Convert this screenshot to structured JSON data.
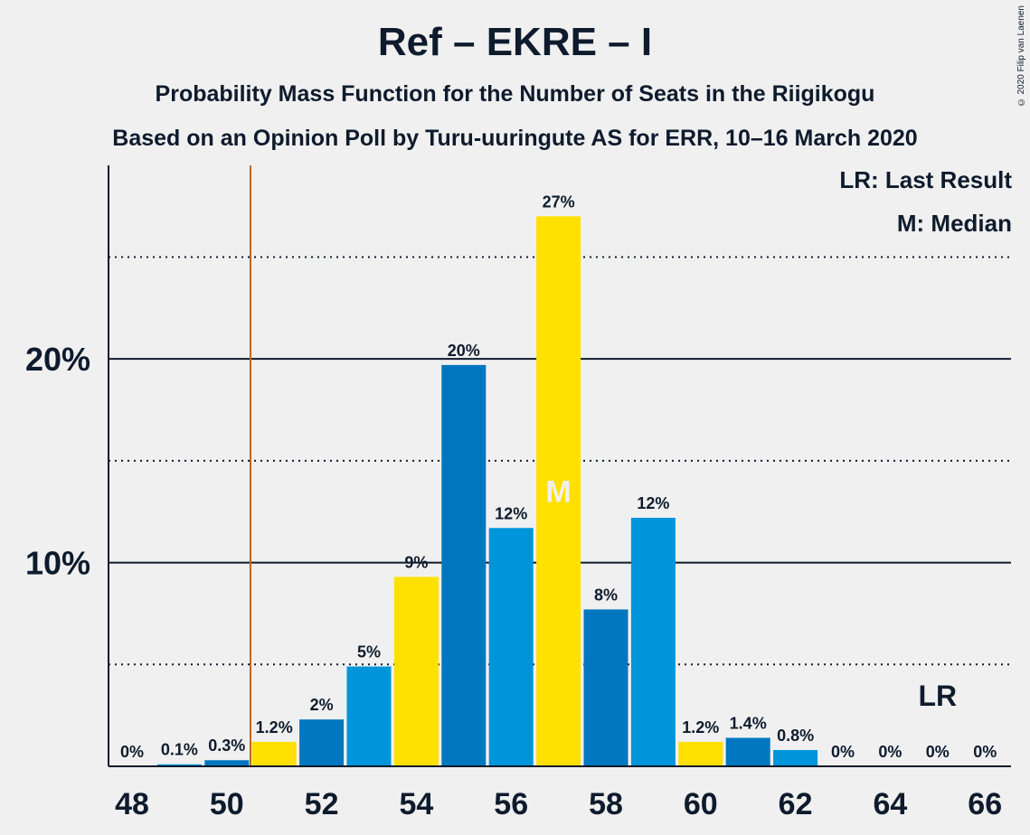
{
  "header": {
    "title": "Ref – EKRE – I",
    "subtitle": "Probability Mass Function for the Number of Seats in the Riigikogu",
    "subtitle2": "Based on an Opinion Poll by Turu-uuringute AS for ERR, 10–16 March 2020",
    "copyright": "© 2020 Filip van Laenen"
  },
  "legend": {
    "last_result": "LR: Last Result",
    "median": "M: Median"
  },
  "chart_data": {
    "type": "bar",
    "categories": [
      48,
      49,
      50,
      51,
      52,
      53,
      54,
      55,
      56,
      57,
      58,
      59,
      60,
      61,
      62,
      63,
      64,
      65,
      66
    ],
    "values": [
      0,
      0.1,
      0.3,
      1.2,
      2.3,
      4.9,
      9.3,
      19.7,
      11.7,
      27,
      7.7,
      12.2,
      1.2,
      1.4,
      0.8,
      0,
      0,
      0,
      0
    ],
    "labels": [
      "0%",
      "0.1%",
      "0.3%",
      "1.2%",
      "2%",
      "5%",
      "9%",
      "20%",
      "12%",
      "27%",
      "8%",
      "12%",
      "1.2%",
      "1.4%",
      "0.8%",
      "0%",
      "0%",
      "0%",
      "0%"
    ],
    "colors": [
      "#0077be",
      "#0095db",
      "#0077be",
      "#ffe000",
      "#0077be",
      "#0095db",
      "#ffe000",
      "#0077be",
      "#0095db",
      "#ffe000",
      "#0077be",
      "#0095db",
      "#ffe000",
      "#0077be",
      "#0095db",
      "#ffe000",
      "#0077be",
      "#0095db",
      "#ffe000"
    ],
    "x_ticks": [
      48,
      50,
      52,
      54,
      56,
      58,
      60,
      62,
      64,
      66
    ],
    "y_ticks": [
      {
        "value": 10,
        "label": "10%"
      },
      {
        "value": 20,
        "label": "20%"
      }
    ],
    "y_minor_gridlines": [
      5,
      15,
      25
    ],
    "ylim": [
      0,
      29.5
    ],
    "median_seat": 57,
    "median_marker": "M",
    "last_result_seat": 50.5,
    "lr_marker": "LR",
    "lr_marker_seat": 65,
    "last_result_color": "#c0651e",
    "grid": true,
    "legend_placement": "top-right"
  }
}
